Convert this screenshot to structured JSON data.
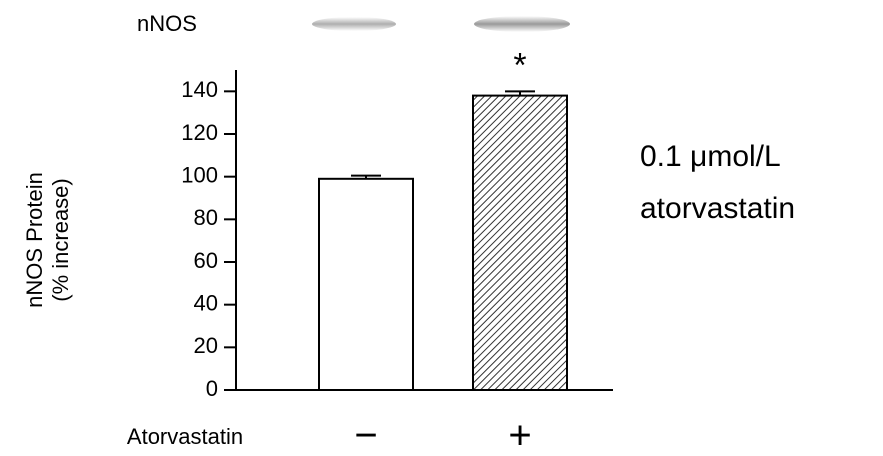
{
  "chart_data": {
    "type": "bar",
    "blot_label": "nNOS",
    "y_label": [
      "nNOS Protein",
      "(% increase)"
    ],
    "x_label": "Atorvastatin",
    "categories": [
      "−",
      "+"
    ],
    "values": [
      99,
      138
    ],
    "errors": [
      1.5,
      2
    ],
    "hatch": [
      false,
      true
    ],
    "significance": "*",
    "side_note": [
      "0.1 μmol/L",
      "atorvastatin"
    ],
    "ylim": [
      0,
      150
    ],
    "yticks": [
      0,
      20,
      40,
      60,
      80,
      100,
      120,
      140
    ]
  }
}
